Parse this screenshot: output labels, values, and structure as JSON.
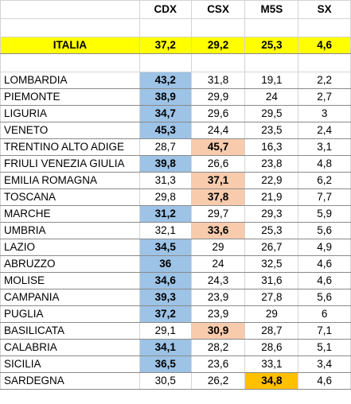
{
  "columns": [
    "CDX",
    "CSX",
    "M5S",
    "SX"
  ],
  "colors": {
    "cdx_win": "#9dc3e6",
    "csx_win": "#f8cbad",
    "m5s_win": "#ffc000",
    "national": "#ffff00"
  },
  "national": {
    "name": "ITALIA",
    "values": [
      "37,2",
      "29,2",
      "25,3",
      "4,6"
    ]
  },
  "regions": [
    {
      "name": "LOMBARDIA",
      "values": [
        "43,2",
        "31,8",
        "19,1",
        "2,2"
      ],
      "winner": 0
    },
    {
      "name": "PIEMONTE",
      "values": [
        "38,9",
        "29,9",
        "24",
        "2,7"
      ],
      "winner": 0
    },
    {
      "name": "LIGURIA",
      "values": [
        "34,7",
        "29,6",
        "29,5",
        "3"
      ],
      "winner": 0
    },
    {
      "name": "VENETO",
      "values": [
        "45,3",
        "24,4",
        "23,5",
        "2,4"
      ],
      "winner": 0
    },
    {
      "name": "TRENTINO ALTO ADIGE",
      "values": [
        "28,7",
        "45,7",
        "16,3",
        "3,1"
      ],
      "winner": 1
    },
    {
      "name": "FRIULI VENEZIA GIULIA",
      "values": [
        "39,8",
        "26,6",
        "23,8",
        "4,8"
      ],
      "winner": 0
    },
    {
      "name": "EMILIA ROMAGNA",
      "values": [
        "31,3",
        "37,1",
        "22,9",
        "6,2"
      ],
      "winner": 1
    },
    {
      "name": "TOSCANA",
      "values": [
        "29,8",
        "37,8",
        "21,9",
        "7,7"
      ],
      "winner": 1
    },
    {
      "name": "MARCHE",
      "values": [
        "31,2",
        "29,7",
        "29,3",
        "5,9"
      ],
      "winner": 0
    },
    {
      "name": "UMBRIA",
      "values": [
        "32,1",
        "33,6",
        "25,3",
        "5,6"
      ],
      "winner": 1
    },
    {
      "name": "LAZIO",
      "values": [
        "34,5",
        "29",
        "26,7",
        "4,9"
      ],
      "winner": 0
    },
    {
      "name": "ABRUZZO",
      "values": [
        "36",
        "24",
        "32,5",
        "4,6"
      ],
      "winner": 0
    },
    {
      "name": "MOLISE",
      "values": [
        "34,6",
        "24,3",
        "31,6",
        "4,6"
      ],
      "winner": 0
    },
    {
      "name": "CAMPANIA",
      "values": [
        "39,3",
        "23,9",
        "27,8",
        "5,6"
      ],
      "winner": 0
    },
    {
      "name": "PUGLIA",
      "values": [
        "37,2",
        "23,9",
        "29",
        "6"
      ],
      "winner": 0
    },
    {
      "name": "BASILICATA",
      "values": [
        "29,1",
        "30,9",
        "28,7",
        "7,1"
      ],
      "winner": 1
    },
    {
      "name": "CALABRIA",
      "values": [
        "34,1",
        "28,2",
        "28,6",
        "5,1"
      ],
      "winner": 0
    },
    {
      "name": "SICILIA",
      "values": [
        "36,5",
        "23,6",
        "33,1",
        "3,4"
      ],
      "winner": 0
    },
    {
      "name": "SARDEGNA",
      "values": [
        "30,5",
        "26,2",
        "34,8",
        "4,6"
      ],
      "winner": 2
    }
  ]
}
